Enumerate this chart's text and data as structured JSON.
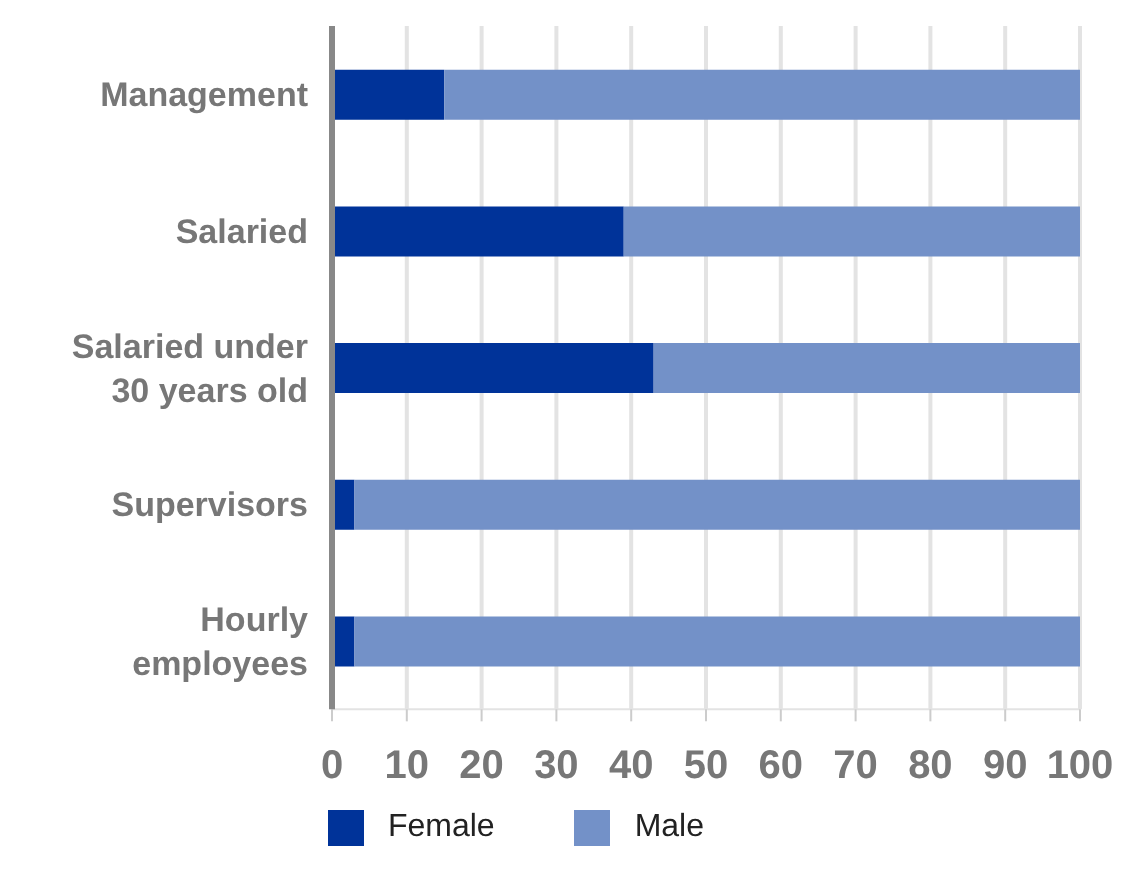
{
  "chart_data": {
    "type": "bar",
    "orientation": "horizontal",
    "stacked": true,
    "categories": [
      "Management",
      "Salaried",
      "Salaried under 30 years old",
      "Supervisors",
      "Hourly employees"
    ],
    "series": [
      {
        "name": "Female",
        "color": "#003399",
        "values": [
          15,
          39,
          43,
          3,
          3
        ]
      },
      {
        "name": "Male",
        "color": "#7391c8",
        "values": [
          85,
          61,
          57,
          97,
          97
        ]
      }
    ],
    "xlim": [
      0,
      100
    ],
    "xticks": [
      0,
      10,
      20,
      30,
      40,
      50,
      60,
      70,
      80,
      90,
      100
    ],
    "grid": "x",
    "legend": "bottom"
  }
}
